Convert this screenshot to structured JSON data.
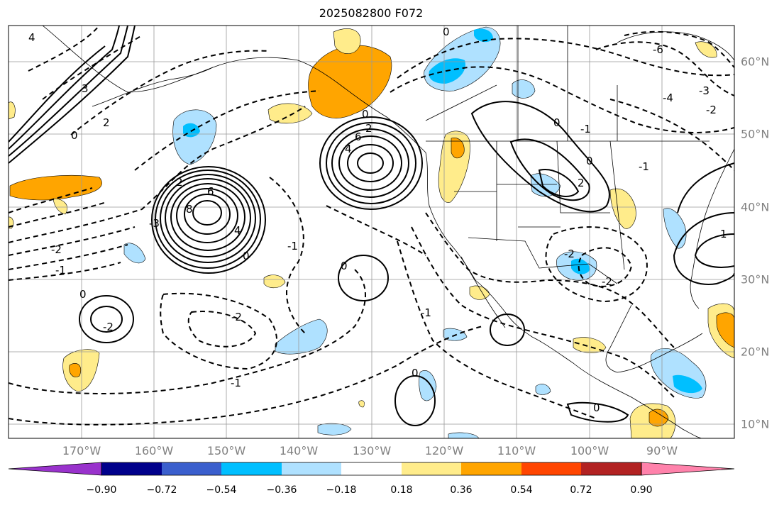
{
  "title": "2025082800 F072",
  "longitude_labels": [
    "170°W",
    "160°W",
    "150°W",
    "140°W",
    "130°W",
    "120°W",
    "110°W",
    "100°W",
    "90°W"
  ],
  "latitude_labels": [
    "60°N",
    "50°N",
    "40°N",
    "30°N",
    "20°N",
    "10°N"
  ],
  "colorbar": {
    "ticks": [
      "−0.90",
      "−0.72",
      "−0.54",
      "−0.36",
      "−0.18",
      "0.18",
      "0.36",
      "0.54",
      "0.72",
      "0.90"
    ],
    "colors": [
      "#9932cc",
      "#00008b",
      "#3a5fcd",
      "#00bfff",
      "#afe1ff",
      "#ffffff",
      "#ffec8b",
      "#ffa500",
      "#ff4500",
      "#b22222",
      "#ff82ab"
    ]
  },
  "colors": {
    "light_blue": "#afe1ff",
    "deep_sky_blue": "#00bfff",
    "light_yellow": "#ffec8b",
    "orange": "#ffa500"
  },
  "contour_labels": [
    "4",
    "3",
    "2",
    "1",
    "0",
    "8",
    "6",
    "4",
    "2",
    "0",
    "-2",
    "-1",
    "0",
    "-2",
    "-1",
    "0",
    "2",
    "4",
    "6",
    "0",
    "-2",
    "-1",
    "0",
    "-6",
    "-4",
    "-3",
    "-2",
    "-1",
    "0",
    "1",
    "2",
    "0",
    "-1",
    "-2",
    "-3",
    "-2",
    "-1",
    "0",
    "0"
  ]
}
